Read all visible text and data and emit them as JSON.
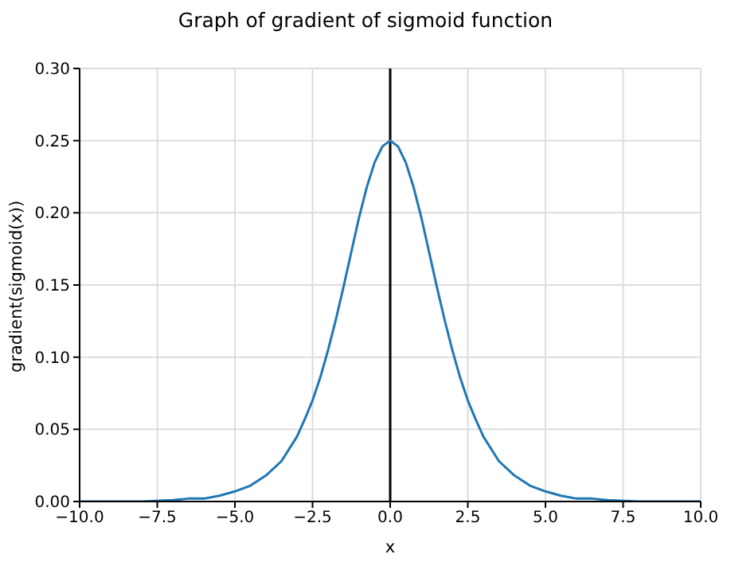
{
  "chart_data": {
    "type": "line",
    "title": "Graph of gradient of sigmoid function",
    "xlabel": "x",
    "ylabel": "gradient(sigmoid(x))",
    "x": [
      -10,
      -9,
      -8,
      -7,
      -6.5,
      -6,
      -5.5,
      -5,
      -4.5,
      -4,
      -3.5,
      -3,
      -2.75,
      -2.5,
      -2.25,
      -2,
      -1.75,
      -1.5,
      -1.25,
      -1,
      -0.75,
      -0.5,
      -0.25,
      0,
      0.25,
      0.5,
      0.75,
      1,
      1.25,
      1.5,
      1.75,
      2,
      2.25,
      2.5,
      2.75,
      3,
      3.5,
      4,
      4.5,
      5,
      5.5,
      6,
      6.5,
      7,
      8,
      9,
      10
    ],
    "series": [
      {
        "color": "#1f77b4",
        "values": [
          0,
          0,
          0,
          0.001,
          0.002,
          0.002,
          0.004,
          0.007,
          0.011,
          0.018,
          0.028,
          0.045,
          0.057,
          0.07,
          0.086,
          0.105,
          0.126,
          0.149,
          0.173,
          0.197,
          0.218,
          0.235,
          0.246,
          0.25,
          0.246,
          0.235,
          0.218,
          0.197,
          0.173,
          0.149,
          0.126,
          0.105,
          0.086,
          0.07,
          0.057,
          0.045,
          0.028,
          0.018,
          0.011,
          0.007,
          0.004,
          0.002,
          0.002,
          0.001,
          0,
          0,
          0
        ]
      }
    ],
    "xlim": [
      -10,
      10
    ],
    "xticks": [
      {
        "value": -10,
        "label": "−10.0"
      },
      {
        "value": -7.5,
        "label": "−7.5"
      },
      {
        "value": -5,
        "label": "−5.0"
      },
      {
        "value": -2.5,
        "label": "−2.5"
      },
      {
        "value": 0,
        "label": "0.0"
      },
      {
        "value": 2.5,
        "label": "2.5"
      },
      {
        "value": 5,
        "label": "5.0"
      },
      {
        "value": 7.5,
        "label": "7.5"
      },
      {
        "value": 10,
        "label": "10.0"
      }
    ],
    "ylim": [
      0,
      0.3
    ],
    "yticks": [
      {
        "value": 0,
        "label": "0.00"
      },
      {
        "value": 0.05,
        "label": "0.05"
      },
      {
        "value": 0.1,
        "label": "0.10"
      },
      {
        "value": 0.15,
        "label": "0.15"
      },
      {
        "value": 0.2,
        "label": "0.20"
      },
      {
        "value": 0.25,
        "label": "0.25"
      },
      {
        "value": 0.3,
        "label": "0.30"
      }
    ],
    "ref_lines": [
      {
        "axis": "x",
        "value": 0,
        "color": "#000000"
      }
    ],
    "grid": true,
    "marker": "none",
    "line_style": "solid"
  }
}
